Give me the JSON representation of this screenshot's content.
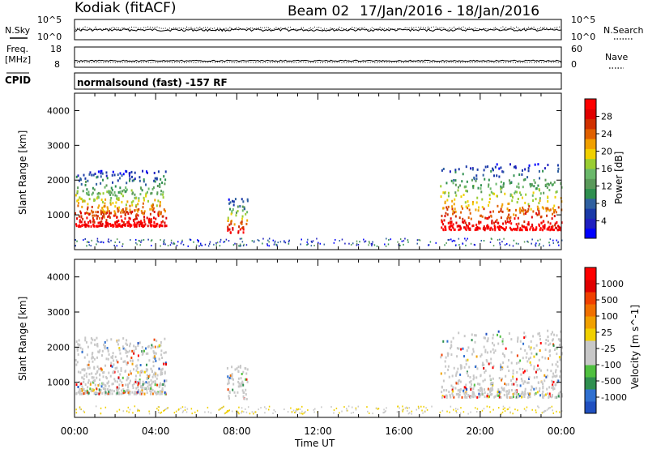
{
  "header": {
    "station": "Kodiak (fitACF)",
    "beam": "Beam 02",
    "date_range": "17/Jan/2016 - 18/Jan/2016"
  },
  "top_panels": {
    "nsky_label": "N.Sky",
    "nsearch_label": "N.Search",
    "nsky_ticks": [
      "10^5",
      "10^0"
    ],
    "nsearch_ticks": [
      "10^5",
      "10^0"
    ],
    "freq_label_1": "Freq.",
    "freq_label_2": "[MHz]",
    "freq_ticks": [
      "18",
      "8"
    ],
    "nave_label": "Nave",
    "nave_ticks": [
      "60",
      "0"
    ],
    "cpid_label": "CPID",
    "cpid_text": "normalsound (fast) -157 RF"
  },
  "chart_data": [
    {
      "type": "heatmap",
      "name": "power",
      "ylabel": "Slant Range [km]",
      "xlabel": "Time UT",
      "ylim": [
        0,
        4500
      ],
      "xlim": [
        0,
        24
      ],
      "x_tick_labels": [
        "00:00",
        "04:00",
        "08:00",
        "12:00",
        "16:00",
        "20:00",
        "00:00"
      ],
      "y_ticks": [
        1000,
        2000,
        3000,
        4000
      ],
      "colorbar": {
        "label": "Power [dB]",
        "ticks": [
          "28",
          "24",
          "20",
          "16",
          "12",
          "8",
          "4"
        ],
        "colors": [
          "#0000ff",
          "#2020c0",
          "#1a3aa8",
          "#3060a0",
          "#2f8f4f",
          "#5a9a5a",
          "#6ab86a",
          "#9acd32",
          "#f0d000",
          "#f0a000",
          "#e06000",
          "#d03000",
          "#e00000",
          "#ff0000"
        ]
      },
      "echo_regions": [
        {
          "t": [
            0.0,
            4.5
          ],
          "r": [
            700,
            2300
          ],
          "level": "strong"
        },
        {
          "t": [
            7.5,
            8.5
          ],
          "r": [
            500,
            1500
          ],
          "level": "weak"
        },
        {
          "t": [
            18.0,
            24.0
          ],
          "r": [
            600,
            2500
          ],
          "level": "strong"
        }
      ]
    },
    {
      "type": "heatmap",
      "name": "velocity",
      "ylabel": "Slant Range [km]",
      "xlabel": "Time UT",
      "ylim": [
        0,
        4500
      ],
      "xlim": [
        0,
        24
      ],
      "x_tick_labels": [
        "00:00",
        "04:00",
        "08:00",
        "12:00",
        "16:00",
        "20:00",
        "00:00"
      ],
      "y_ticks": [
        1000,
        2000,
        3000,
        4000
      ],
      "colorbar": {
        "label": "Velocity [m s^-1]",
        "ticks": [
          "1000",
          "500",
          "100",
          "25",
          "-25",
          "-100",
          "-500",
          "-1000"
        ],
        "colors": [
          "#2050c0",
          "#3070d0",
          "#2f8f4f",
          "#50c040",
          "#c8c8c8",
          "#c8c8c8",
          "#f0d000",
          "#f0a000",
          "#f07000",
          "#f04000",
          "#e00000",
          "#ff0000"
        ]
      }
    }
  ]
}
